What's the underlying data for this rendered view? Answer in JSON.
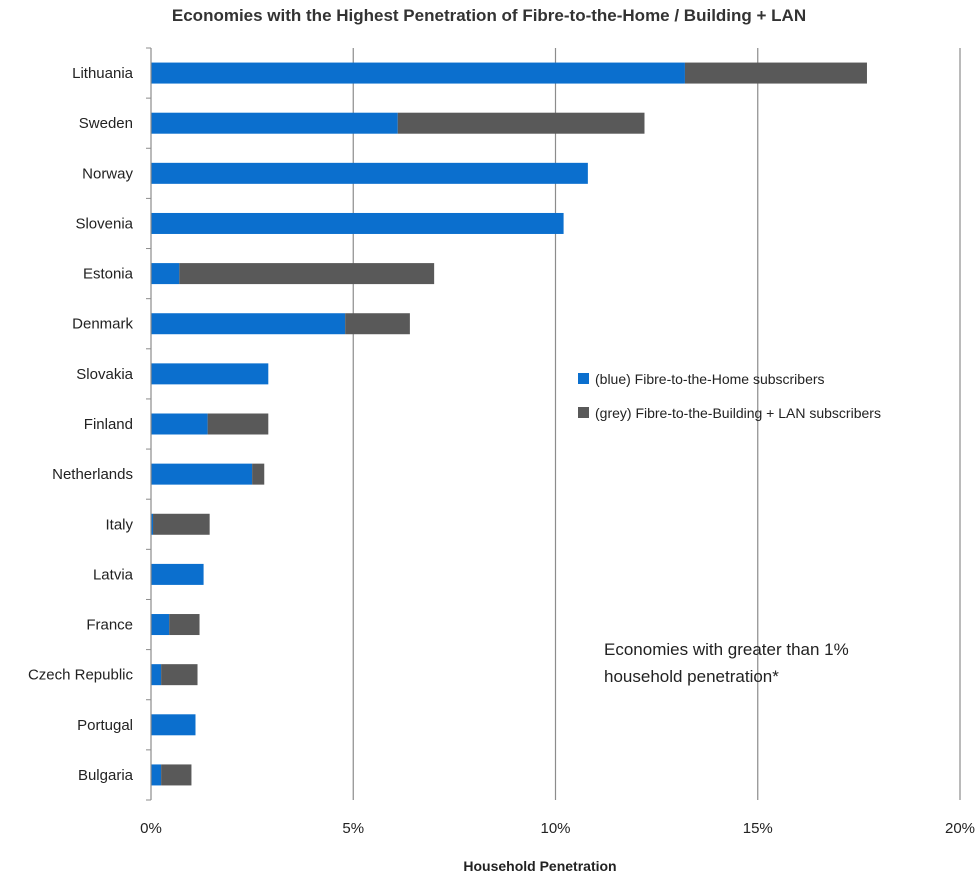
{
  "chart_data": {
    "type": "bar",
    "orientation": "horizontal",
    "stacked": true,
    "title": "Economies with the Highest Penetration of Fibre-to-the-Home / Building + LAN",
    "xlabel": "Household Penetration",
    "ylabel": "",
    "xlim": [
      0,
      20
    ],
    "x_tick_labels": [
      "0%",
      "5%",
      "10%",
      "15%",
      "20%"
    ],
    "x_ticks": [
      0,
      5,
      10,
      15,
      20
    ],
    "grid": "vertical",
    "legend_position": "right-middle",
    "categories": [
      "Lithuania",
      "Sweden",
      "Norway",
      "Slovenia",
      "Estonia",
      "Denmark",
      "Slovakia",
      "Finland",
      "Netherlands",
      "Italy",
      "Latvia",
      "France",
      "Czech Republic",
      "Portugal",
      "Bulgaria"
    ],
    "series": [
      {
        "name": "(blue) Fibre-to-the-Home subscribers",
        "color": "#0b6fce",
        "values": [
          13.2,
          6.1,
          10.8,
          10.2,
          0.7,
          4.8,
          2.9,
          1.4,
          2.5,
          0.05,
          1.3,
          0.45,
          0.25,
          1.1,
          0.25
        ]
      },
      {
        "name": "(grey) Fibre-to-the-Building + LAN subscribers",
        "color": "#595959",
        "values": [
          4.5,
          6.1,
          0.0,
          0.0,
          6.3,
          1.6,
          0.0,
          1.5,
          0.3,
          1.4,
          0.0,
          0.75,
          0.9,
          0.0,
          0.75
        ]
      }
    ],
    "annotation": [
      "Economies with greater than 1%",
      "household penetration*"
    ]
  }
}
